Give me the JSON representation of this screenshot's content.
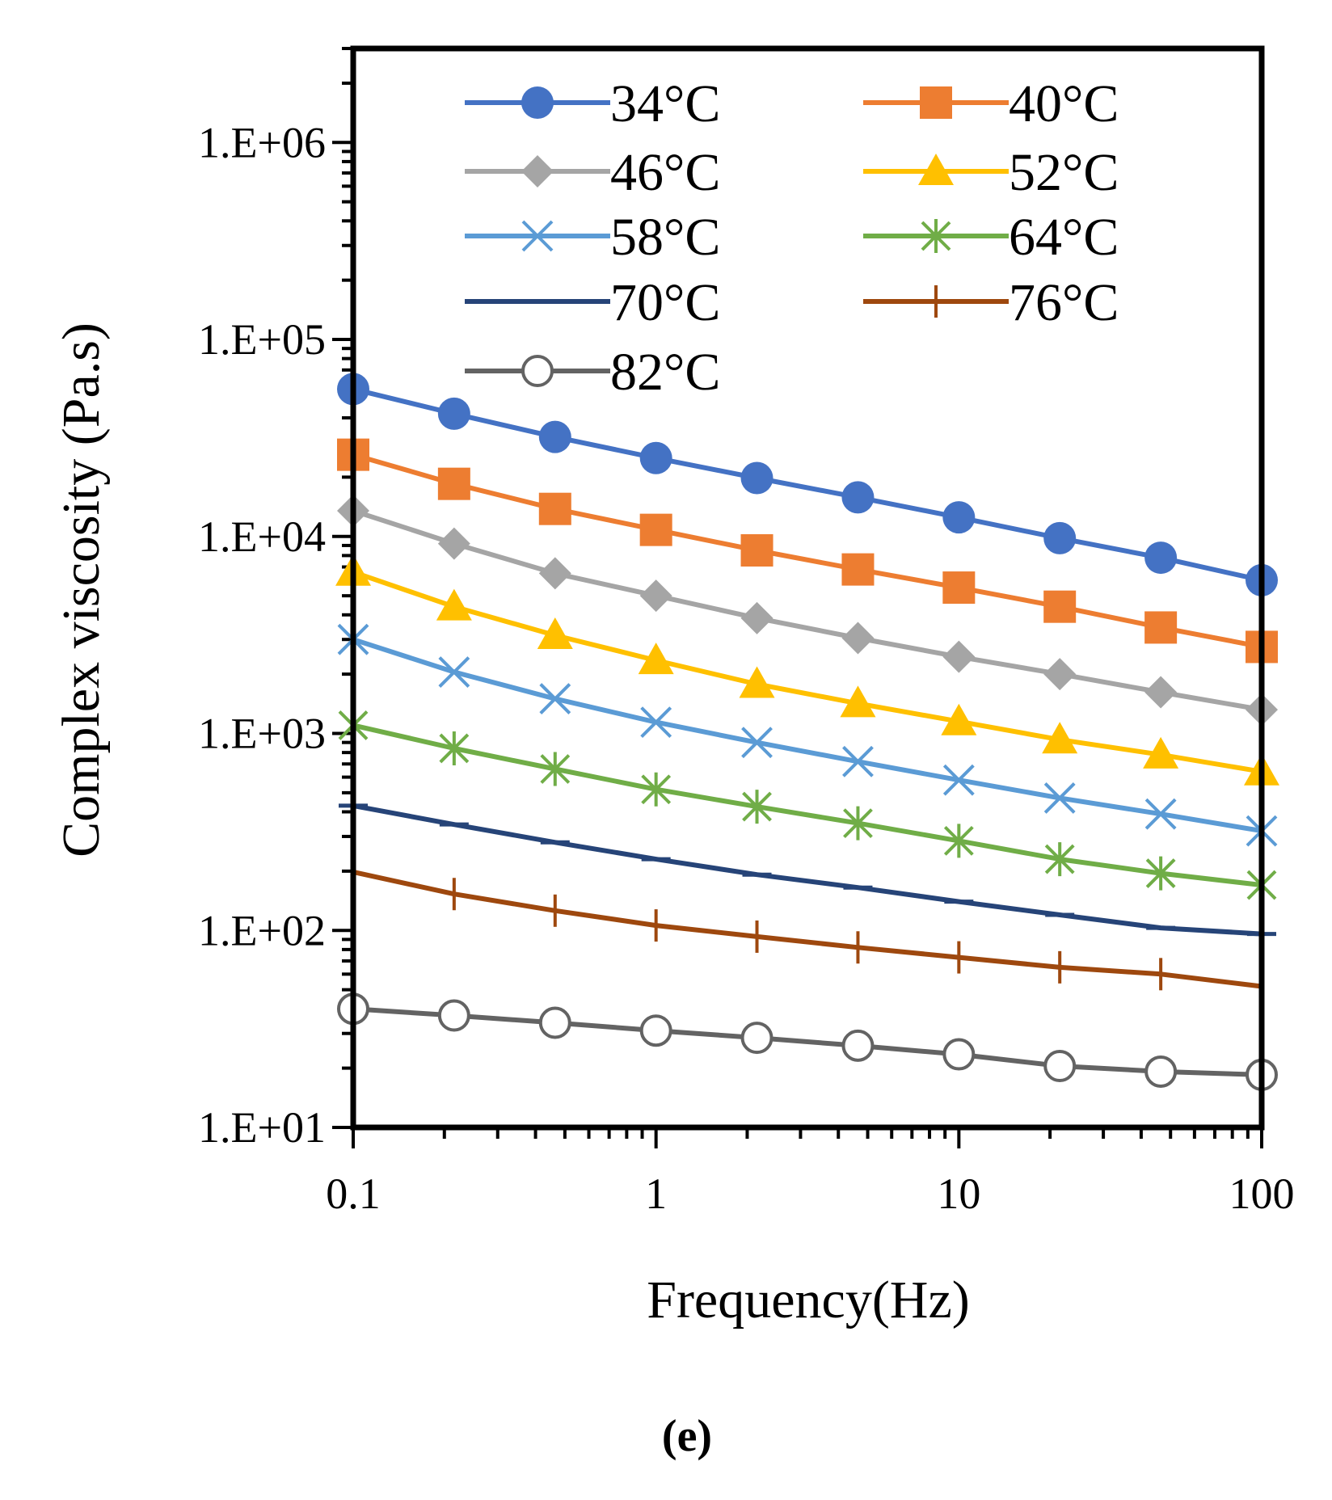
{
  "chart_data": {
    "type": "line",
    "xscale": "log",
    "yscale": "log",
    "xlim": [
      0.1,
      100
    ],
    "ylim": [
      10,
      3000000
    ],
    "xlabel": "Frequency(Hz)",
    "ylabel": "Complex  viscosity (Pa.s)",
    "x_tick_labels": [
      "0.1",
      "1",
      "10",
      "100"
    ],
    "x_tick_values": [
      0.1,
      1,
      10,
      100
    ],
    "y_tick_labels": [
      "1.E+01",
      "1.E+02",
      "1.E+03",
      "1.E+04",
      "1.E+05",
      "1.E+06"
    ],
    "y_tick_values": [
      10,
      100,
      1000,
      10000,
      100000,
      1000000
    ],
    "caption": "(e)",
    "legend_position": "top",
    "x": [
      0.1,
      0.2154,
      0.4642,
      1.0,
      2.154,
      4.642,
      10.0,
      21.54,
      46.42,
      100.0
    ],
    "series": [
      {
        "name": "34°C",
        "color": "#4472C4",
        "marker": "circle-filled",
        "values": [
          56000,
          42000,
          32000,
          25000,
          19800,
          15800,
          12500,
          9800,
          7800,
          6000
        ]
      },
      {
        "name": "40°C",
        "color": "#ED7D31",
        "marker": "square",
        "values": [
          26000,
          18500,
          13800,
          10800,
          8500,
          6800,
          5500,
          4400,
          3450,
          2750
        ]
      },
      {
        "name": "46°C",
        "color": "#A5A5A5",
        "marker": "diamond",
        "values": [
          13500,
          9200,
          6500,
          5000,
          3850,
          3050,
          2450,
          2000,
          1620,
          1320
        ]
      },
      {
        "name": "52°C",
        "color": "#FFC000",
        "marker": "triangle",
        "values": [
          6600,
          4400,
          3150,
          2350,
          1780,
          1420,
          1150,
          930,
          780,
          640
        ]
      },
      {
        "name": "58°C",
        "color": "#5B9BD5",
        "marker": "x",
        "values": [
          3000,
          2050,
          1500,
          1140,
          900,
          720,
          580,
          470,
          390,
          320
        ]
      },
      {
        "name": "64°C",
        "color": "#70AD47",
        "marker": "asterisk",
        "values": [
          1100,
          840,
          660,
          520,
          425,
          350,
          285,
          230,
          195,
          170
        ]
      },
      {
        "name": "70°C",
        "color": "#264478",
        "marker": "dash",
        "values": [
          430,
          345,
          280,
          230,
          192,
          165,
          140,
          120,
          103,
          96
        ]
      },
      {
        "name": "76°C",
        "color": "#9E480E",
        "marker": "plus",
        "values": [
          198,
          153,
          126,
          106,
          93,
          82,
          73,
          65,
          60,
          52
        ]
      },
      {
        "name": "82°C",
        "color": "#636363",
        "marker": "circle-open",
        "values": [
          40,
          37,
          34,
          31,
          28.5,
          26,
          23.5,
          20.5,
          19.2,
          18.5
        ]
      }
    ]
  }
}
